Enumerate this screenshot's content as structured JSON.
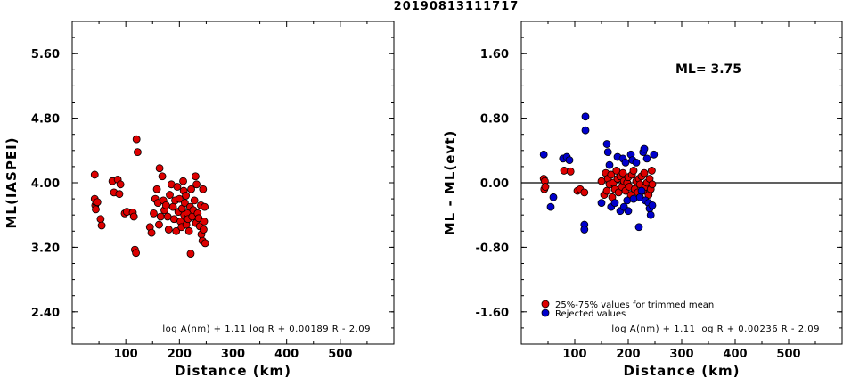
{
  "title": "20190813111717",
  "colors": {
    "accepted": "#dd0000",
    "rejected": "#0000cc",
    "frame": "#000000"
  },
  "chart_data": [
    {
      "type": "scatter",
      "xlabel": "Distance (km)",
      "ylabel": "ML(IASPEI)",
      "xlim": [
        0,
        600
      ],
      "ylim": [
        2.0,
        6.0
      ],
      "x_ticks": [
        "100",
        "200",
        "300",
        "400",
        "500"
      ],
      "y_ticks": [
        "2.40",
        "3.20",
        "4.00",
        "4.80",
        "5.60"
      ],
      "formula": "log A(nm) + 1.11 log R + 0.00189 R - 2.09",
      "grid": false,
      "series": [
        {
          "color": "#dd0000",
          "points": [
            [
              42,
              4.1
            ],
            [
              42,
              3.8
            ],
            [
              43,
              3.72
            ],
            [
              45,
              3.75
            ],
            [
              44,
              3.67
            ],
            [
              47,
              3.76
            ],
            [
              53,
              3.55
            ],
            [
              55,
              3.47
            ],
            [
              75,
              4.02
            ],
            [
              78,
              3.88
            ],
            [
              85,
              4.04
            ],
            [
              88,
              3.86
            ],
            [
              90,
              3.98
            ],
            [
              98,
              3.62
            ],
            [
              102,
              3.64
            ],
            [
              113,
              3.63
            ],
            [
              115,
              3.58
            ],
            [
              117,
              3.17
            ],
            [
              119,
              3.13
            ],
            [
              120,
              4.54
            ],
            [
              122,
              4.38
            ],
            [
              145,
              3.45
            ],
            [
              148,
              3.38
            ],
            [
              152,
              3.62
            ],
            [
              155,
              3.8
            ],
            [
              158,
              3.92
            ],
            [
              160,
              3.75
            ],
            [
              162,
              3.48
            ],
            [
              163,
              4.18
            ],
            [
              165,
              3.58
            ],
            [
              168,
              4.08
            ],
            [
              170,
              3.78
            ],
            [
              172,
              3.66
            ],
            [
              175,
              3.72
            ],
            [
              178,
              3.58
            ],
            [
              180,
              3.42
            ],
            [
              182,
              3.85
            ],
            [
              185,
              3.98
            ],
            [
              188,
              3.7
            ],
            [
              190,
              3.55
            ],
            [
              192,
              3.78
            ],
            [
              194,
              3.4
            ],
            [
              196,
              3.95
            ],
            [
              198,
              3.64
            ],
            [
              200,
              3.8
            ],
            [
              202,
              3.52
            ],
            [
              204,
              3.45
            ],
            [
              205,
              3.68
            ],
            [
              207,
              4.02
            ],
            [
              208,
              3.9
            ],
            [
              209,
              3.6
            ],
            [
              210,
              3.75
            ],
            [
              212,
              3.84
            ],
            [
              213,
              3.48
            ],
            [
              215,
              3.62
            ],
            [
              216,
              3.55
            ],
            [
              218,
              3.4
            ],
            [
              220,
              3.7
            ],
            [
              221,
              3.12
            ],
            [
              222,
              3.92
            ],
            [
              224,
              3.58
            ],
            [
              226,
              3.66
            ],
            [
              228,
              3.78
            ],
            [
              230,
              4.08
            ],
            [
              231,
              3.5
            ],
            [
              232,
              3.98
            ],
            [
              234,
              3.62
            ],
            [
              236,
              3.56
            ],
            [
              238,
              3.46
            ],
            [
              240,
              3.72
            ],
            [
              241,
              3.36
            ],
            [
              243,
              3.28
            ],
            [
              244,
              3.92
            ],
            [
              245,
              3.42
            ],
            [
              246,
              3.52
            ],
            [
              247,
              3.7
            ],
            [
              248,
              3.25
            ]
          ]
        }
      ]
    },
    {
      "type": "scatter",
      "xlabel": "Distance (km)",
      "ylabel": "ML - ML(evt)",
      "xlim": [
        0,
        600
      ],
      "ylim": [
        -2.0,
        2.0
      ],
      "x_ticks": [
        "100",
        "200",
        "300",
        "400",
        "500"
      ],
      "y_ticks": [
        "-1.60",
        "-0.80",
        "0.00",
        "0.80",
        "1.60"
      ],
      "annotation": "ML= 3.75",
      "formula": "log A(nm) + 1.11 log R + 0.00236 R - 2.09",
      "reference_line": 0.0,
      "grid": false,
      "legend_position": "bottom-left",
      "series": [
        {
          "name": "25%-75% values for trimmed mean",
          "color": "#dd0000",
          "points": [
            [
              42,
              0.05
            ],
            [
              43,
              -0.08
            ],
            [
              44,
              0.02
            ],
            [
              45,
              -0.05
            ],
            [
              80,
              0.15
            ],
            [
              92,
              0.14
            ],
            [
              105,
              -0.1
            ],
            [
              110,
              -0.08
            ],
            [
              118,
              -0.12
            ],
            [
              150,
              0.02
            ],
            [
              155,
              -0.15
            ],
            [
              158,
              0.12
            ],
            [
              160,
              -0.1
            ],
            [
              162,
              0.05
            ],
            [
              165,
              -0.02
            ],
            [
              168,
              0.1
            ],
            [
              170,
              -0.18
            ],
            [
              172,
              0.0
            ],
            [
              175,
              -0.08
            ],
            [
              178,
              0.15
            ],
            [
              180,
              0.05
            ],
            [
              182,
              -0.12
            ],
            [
              185,
              0.08
            ],
            [
              188,
              -0.05
            ],
            [
              190,
              0.12
            ],
            [
              192,
              0.02
            ],
            [
              195,
              -0.1
            ],
            [
              198,
              0.0
            ],
            [
              200,
              0.07
            ],
            [
              202,
              -0.05
            ],
            [
              205,
              -0.15
            ],
            [
              207,
              0.1
            ],
            [
              210,
              0.15
            ],
            [
              212,
              -0.08
            ],
            [
              215,
              0.02
            ],
            [
              218,
              -0.12
            ],
            [
              220,
              0.05
            ],
            [
              222,
              -0.02
            ],
            [
              225,
              0.08
            ],
            [
              228,
              -0.1
            ],
            [
              230,
              0.12
            ],
            [
              232,
              -0.05
            ],
            [
              235,
              0.0
            ],
            [
              238,
              -0.15
            ],
            [
              240,
              0.05
            ],
            [
              242,
              -0.08
            ],
            [
              244,
              0.15
            ],
            [
              245,
              -0.02
            ]
          ]
        },
        {
          "name": "Rejected values",
          "color": "#0000cc",
          "points": [
            [
              42,
              0.35
            ],
            [
              55,
              -0.3
            ],
            [
              60,
              -0.18
            ],
            [
              78,
              0.3
            ],
            [
              85,
              0.32
            ],
            [
              90,
              0.28
            ],
            [
              118,
              -0.52
            ],
            [
              118,
              -0.58
            ],
            [
              120,
              0.82
            ],
            [
              120,
              0.65
            ],
            [
              150,
              -0.25
            ],
            [
              160,
              0.48
            ],
            [
              162,
              0.38
            ],
            [
              165,
              0.22
            ],
            [
              168,
              -0.3
            ],
            [
              175,
              -0.25
            ],
            [
              180,
              0.32
            ],
            [
              185,
              -0.35
            ],
            [
              190,
              0.3
            ],
            [
              192,
              -0.3
            ],
            [
              195,
              0.25
            ],
            [
              198,
              -0.22
            ],
            [
              200,
              -0.35
            ],
            [
              205,
              0.35
            ],
            [
              208,
              0.28
            ],
            [
              210,
              -0.2
            ],
            [
              215,
              0.25
            ],
            [
              220,
              -0.55
            ],
            [
              222,
              -0.18
            ],
            [
              225,
              -0.1
            ],
            [
              228,
              0.38
            ],
            [
              230,
              0.42
            ],
            [
              232,
              -0.22
            ],
            [
              235,
              0.3
            ],
            [
              238,
              -0.25
            ],
            [
              240,
              -0.32
            ],
            [
              242,
              -0.4
            ],
            [
              245,
              -0.28
            ],
            [
              248,
              0.35
            ]
          ]
        }
      ]
    }
  ]
}
